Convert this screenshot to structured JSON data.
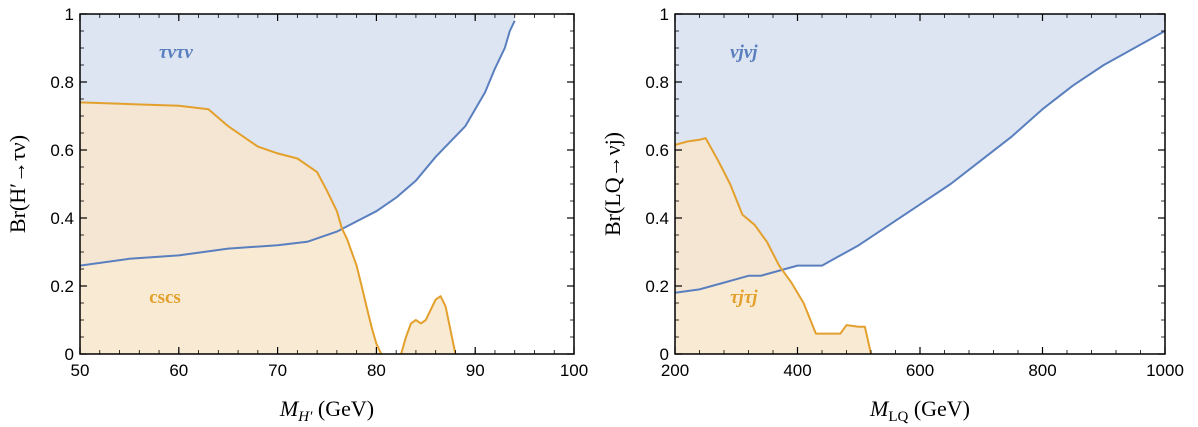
{
  "colors": {
    "blue_line": "#5a7fbe",
    "blue_fill": "#dde4f2",
    "orange_line": "#e3a02c",
    "orange_fill": "#f8e6cc",
    "overlap_fill": "#d5d0c8"
  },
  "chart_data": [
    {
      "type": "area",
      "xlabel_main": "M",
      "xlabel_sub": "H′",
      "xlabel_unit": " (GeV)",
      "ylabel": "Br(H′→τν)",
      "xlim": [
        50,
        100
      ],
      "ylim": [
        0,
        1
      ],
      "xticks": [
        50,
        60,
        70,
        80,
        90,
        100
      ],
      "xtick_labels": [
        "50",
        "60",
        "70",
        "80",
        "90",
        "100"
      ],
      "yticks": [
        0,
        0.2,
        0.4,
        0.6,
        0.8,
        1
      ],
      "ytick_labels": [
        "0",
        "0.2",
        "0.4",
        "0.6",
        "0.8",
        "1"
      ],
      "grid": false,
      "series": [
        {
          "name": "τντν",
          "role": "lower_bound_of_allowed_region_above",
          "x": [
            50,
            55,
            60,
            65,
            70,
            73,
            76,
            78,
            80,
            82,
            84,
            86,
            88,
            89,
            90,
            91,
            92,
            93,
            93.5,
            94
          ],
          "y": [
            0.26,
            0.28,
            0.29,
            0.31,
            0.32,
            0.33,
            0.36,
            0.39,
            0.42,
            0.46,
            0.51,
            0.58,
            0.64,
            0.67,
            0.72,
            0.77,
            0.84,
            0.9,
            0.95,
            0.98
          ]
        },
        {
          "name": "cscs",
          "role": "upper_bound_of_allowed_region_below",
          "x": [
            50,
            55,
            60,
            63,
            65,
            68,
            70,
            72,
            74,
            75,
            76,
            76.5,
            77,
            77.5,
            78,
            78.5,
            79,
            79.5,
            80,
            80.5
          ],
          "y": [
            0.74,
            0.735,
            0.73,
            0.72,
            0.67,
            0.61,
            0.59,
            0.575,
            0.535,
            0.48,
            0.42,
            0.37,
            0.34,
            0.3,
            0.26,
            0.2,
            0.14,
            0.08,
            0.03,
            0
          ]
        },
        {
          "name": "cscs (island)",
          "role": "upper_bound_of_allowed_region_below",
          "x": [
            82.5,
            83,
            83.5,
            84,
            84.5,
            85,
            85.5,
            86,
            86.5,
            87,
            87.5,
            88
          ],
          "y": [
            0,
            0.05,
            0.09,
            0.1,
            0.09,
            0.1,
            0.13,
            0.16,
            0.17,
            0.14,
            0.07,
            0
          ]
        }
      ],
      "labels": [
        {
          "text": "τντν",
          "x": 58,
          "y": 0.87,
          "color_key": "blue_line",
          "italic": true
        },
        {
          "text": "cscs",
          "x": 57,
          "y": 0.15,
          "color_key": "orange_line",
          "italic": false
        }
      ]
    },
    {
      "type": "area",
      "xlabel_main": "M",
      "xlabel_sub": "LQ",
      "xlabel_unit": " (GeV)",
      "ylabel": "Br(LQ→νj)",
      "xlim": [
        200,
        1000
      ],
      "ylim": [
        0,
        1
      ],
      "xticks": [
        200,
        400,
        600,
        800,
        1000
      ],
      "xtick_labels": [
        "200",
        "400",
        "600",
        "800",
        "1000"
      ],
      "yticks": [
        0,
        0.2,
        0.4,
        0.6,
        0.8,
        1
      ],
      "ytick_labels": [
        "0",
        "0.2",
        "0.4",
        "0.6",
        "0.8",
        "1"
      ],
      "grid": false,
      "series": [
        {
          "name": "νjνj",
          "role": "lower_bound_of_allowed_region_above",
          "x": [
            200,
            240,
            280,
            300,
            320,
            340,
            360,
            380,
            400,
            420,
            440,
            460,
            500,
            550,
            600,
            650,
            700,
            750,
            800,
            850,
            900,
            950,
            1000
          ],
          "y": [
            0.18,
            0.19,
            0.21,
            0.22,
            0.23,
            0.23,
            0.24,
            0.25,
            0.26,
            0.26,
            0.26,
            0.28,
            0.32,
            0.38,
            0.44,
            0.5,
            0.57,
            0.64,
            0.72,
            0.79,
            0.85,
            0.9,
            0.95
          ]
        },
        {
          "name": "τjτj",
          "role": "upper_bound_of_allowed_region_below",
          "x": [
            200,
            220,
            240,
            250,
            270,
            290,
            310,
            330,
            350,
            370,
            390,
            410,
            430,
            450,
            470,
            480,
            500,
            510,
            520
          ],
          "y": [
            0.615,
            0.625,
            0.63,
            0.635,
            0.57,
            0.5,
            0.41,
            0.38,
            0.33,
            0.26,
            0.21,
            0.15,
            0.06,
            0.06,
            0.06,
            0.085,
            0.08,
            0.08,
            0
          ]
        }
      ],
      "labels": [
        {
          "text": "νjνj",
          "x": 290,
          "y": 0.87,
          "color_key": "blue_line",
          "italic": true
        },
        {
          "text": "τjτj",
          "x": 290,
          "y": 0.15,
          "color_key": "orange_line",
          "italic": true
        }
      ]
    }
  ]
}
